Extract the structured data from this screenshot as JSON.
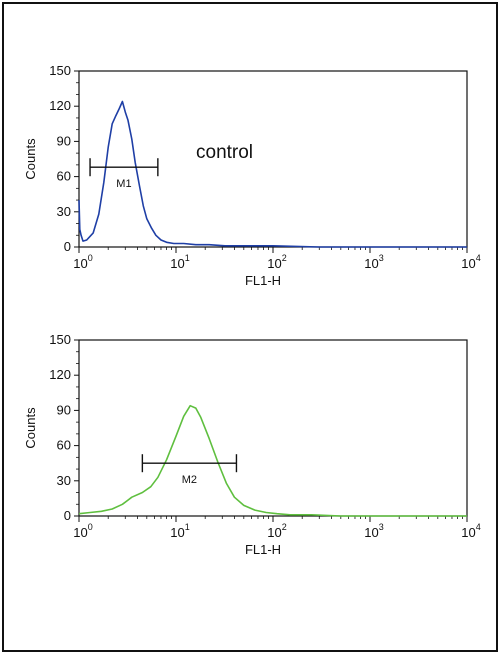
{
  "chart_data": [
    {
      "type": "line",
      "title": "",
      "xlabel": "FL1-H",
      "ylabel": "Counts",
      "x_scale": "log",
      "xlim": [
        1,
        10000
      ],
      "ylim": [
        0,
        150
      ],
      "x_ticks": [
        {
          "base": "10",
          "exp": "0"
        },
        {
          "base": "10",
          "exp": "1"
        },
        {
          "base": "10",
          "exp": "2"
        },
        {
          "base": "10",
          "exp": "3"
        },
        {
          "base": "10",
          "exp": "4"
        }
      ],
      "y_ticks": [
        "0",
        "30",
        "60",
        "90",
        "120",
        "150"
      ],
      "annotation": "control",
      "series_color": "#1f3fa6",
      "gate": {
        "label": "M1",
        "x_start": 1.3,
        "x_end": 6.5,
        "y": 68
      },
      "series": [
        {
          "x": [
            1.0,
            1.02,
            1.05,
            1.1,
            1.2,
            1.4,
            1.6,
            1.8,
            2.0,
            2.2,
            2.4,
            2.6,
            2.8,
            3.0,
            3.2,
            3.5,
            3.8,
            4.2,
            4.6,
            5.0,
            5.6,
            6.2,
            7.0,
            8.0,
            9.5,
            12,
            16,
            22,
            32,
            50,
            100,
            300,
            1000,
            10000
          ],
          "y": [
            40,
            15,
            10,
            5,
            6,
            12,
            28,
            55,
            85,
            105,
            112,
            118,
            124,
            115,
            108,
            92,
            72,
            52,
            35,
            24,
            16,
            10,
            6,
            4,
            3,
            3,
            2,
            2,
            1,
            1,
            1,
            0,
            0,
            0
          ]
        }
      ]
    },
    {
      "type": "line",
      "title": "",
      "xlabel": "FL1-H",
      "ylabel": "Counts",
      "x_scale": "log",
      "xlim": [
        1,
        10000
      ],
      "ylim": [
        0,
        150
      ],
      "x_ticks": [
        {
          "base": "10",
          "exp": "0"
        },
        {
          "base": "10",
          "exp": "1"
        },
        {
          "base": "10",
          "exp": "2"
        },
        {
          "base": "10",
          "exp": "3"
        },
        {
          "base": "10",
          "exp": "4"
        }
      ],
      "y_ticks": [
        "0",
        "30",
        "60",
        "90",
        "120",
        "150"
      ],
      "annotation": "",
      "series_color": "#5fbf3f",
      "gate": {
        "label": "M2",
        "x_start": 4.5,
        "x_end": 42,
        "y": 45
      },
      "series": [
        {
          "x": [
            1.0,
            1.3,
            1.7,
            2.2,
            2.8,
            3.5,
            4.5,
            5.5,
            6.5,
            8,
            10,
            12,
            14,
            16,
            18,
            22,
            27,
            33,
            40,
            50,
            65,
            85,
            110,
            150,
            250,
            500,
            1000,
            3000,
            10000
          ],
          "y": [
            2,
            3,
            4,
            6,
            10,
            16,
            20,
            25,
            33,
            48,
            68,
            85,
            94,
            92,
            84,
            66,
            46,
            28,
            16,
            9,
            5,
            3,
            2,
            1,
            1,
            0,
            0,
            0,
            0
          ]
        }
      ]
    }
  ]
}
